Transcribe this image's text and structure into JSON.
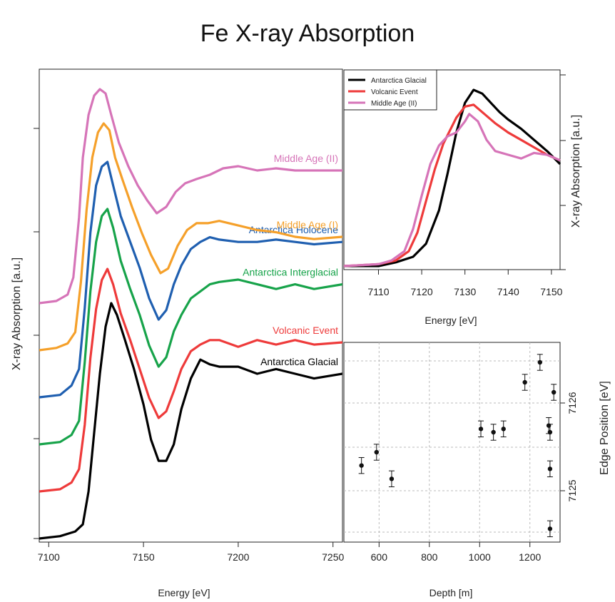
{
  "title": "Fe X-ray Absorption",
  "chart_data": [
    {
      "type": "line",
      "xlabel": "Energy [eV]",
      "ylabel": "X-ray Absorption [a.u.]",
      "xlim": [
        7095,
        7255
      ],
      "ylim": [
        0,
        1
      ],
      "xticks": [
        "7100",
        "7150",
        "7200",
        "7250"
      ],
      "grid": false,
      "legend": "inline labels on right",
      "series": [
        {
          "name": "Antarctica Glacial",
          "color": "#000000",
          "offset": 0.0,
          "scale": 0.55,
          "points": [
            [
              7095,
              0.0
            ],
            [
              7106,
              0.01
            ],
            [
              7114,
              0.03
            ],
            [
              7118,
              0.06
            ],
            [
              7121,
              0.2
            ],
            [
              7124,
              0.45
            ],
            [
              7127,
              0.7
            ],
            [
              7130,
              0.9
            ],
            [
              7133,
              1.0
            ],
            [
              7136,
              0.95
            ],
            [
              7140,
              0.85
            ],
            [
              7145,
              0.72
            ],
            [
              7150,
              0.57
            ],
            [
              7154,
              0.42
            ],
            [
              7158,
              0.33
            ],
            [
              7162,
              0.33
            ],
            [
              7166,
              0.4
            ],
            [
              7170,
              0.55
            ],
            [
              7175,
              0.68
            ],
            [
              7180,
              0.76
            ],
            [
              7185,
              0.74
            ],
            [
              7190,
              0.73
            ],
            [
              7200,
              0.73
            ],
            [
              7210,
              0.7
            ],
            [
              7220,
              0.72
            ],
            [
              7230,
              0.7
            ],
            [
              7240,
              0.68
            ],
            [
              7255,
              0.7
            ]
          ]
        },
        {
          "name": "Volcanic Event",
          "color": "#ee3a3a",
          "offset": 0.11,
          "scale": 0.52,
          "points": [
            [
              7095,
              0.0
            ],
            [
              7106,
              0.01
            ],
            [
              7112,
              0.04
            ],
            [
              7116,
              0.1
            ],
            [
              7119,
              0.3
            ],
            [
              7122,
              0.6
            ],
            [
              7125,
              0.82
            ],
            [
              7128,
              0.95
            ],
            [
              7131,
              1.0
            ],
            [
              7134,
              0.93
            ],
            [
              7138,
              0.8
            ],
            [
              7143,
              0.68
            ],
            [
              7148,
              0.55
            ],
            [
              7153,
              0.42
            ],
            [
              7158,
              0.33
            ],
            [
              7162,
              0.36
            ],
            [
              7166,
              0.45
            ],
            [
              7170,
              0.55
            ],
            [
              7175,
              0.63
            ],
            [
              7180,
              0.66
            ],
            [
              7185,
              0.68
            ],
            [
              7190,
              0.68
            ],
            [
              7200,
              0.65
            ],
            [
              7210,
              0.68
            ],
            [
              7220,
              0.66
            ],
            [
              7230,
              0.68
            ],
            [
              7240,
              0.66
            ],
            [
              7255,
              0.67
            ]
          ]
        },
        {
          "name": "Antarctica Interglacial",
          "color": "#17a34a",
          "offset": 0.22,
          "scale": 0.55,
          "points": [
            [
              7095,
              0.0
            ],
            [
              7106,
              0.01
            ],
            [
              7112,
              0.04
            ],
            [
              7116,
              0.1
            ],
            [
              7119,
              0.35
            ],
            [
              7122,
              0.65
            ],
            [
              7125,
              0.86
            ],
            [
              7128,
              0.97
            ],
            [
              7131,
              1.0
            ],
            [
              7134,
              0.92
            ],
            [
              7138,
              0.78
            ],
            [
              7143,
              0.66
            ],
            [
              7148,
              0.55
            ],
            [
              7153,
              0.42
            ],
            [
              7158,
              0.33
            ],
            [
              7162,
              0.37
            ],
            [
              7166,
              0.48
            ],
            [
              7170,
              0.55
            ],
            [
              7175,
              0.62
            ],
            [
              7180,
              0.65
            ],
            [
              7185,
              0.68
            ],
            [
              7190,
              0.69
            ],
            [
              7200,
              0.7
            ],
            [
              7210,
              0.68
            ],
            [
              7220,
              0.66
            ],
            [
              7230,
              0.68
            ],
            [
              7240,
              0.66
            ],
            [
              7255,
              0.68
            ]
          ]
        },
        {
          "name": "Antarctica Holocene",
          "color": "#1f5fb0",
          "offset": 0.33,
          "scale": 0.55,
          "points": [
            [
              7095,
              0.0
            ],
            [
              7106,
              0.01
            ],
            [
              7112,
              0.05
            ],
            [
              7116,
              0.12
            ],
            [
              7119,
              0.38
            ],
            [
              7122,
              0.7
            ],
            [
              7125,
              0.9
            ],
            [
              7128,
              0.98
            ],
            [
              7131,
              1.0
            ],
            [
              7134,
              0.9
            ],
            [
              7138,
              0.77
            ],
            [
              7143,
              0.66
            ],
            [
              7148,
              0.55
            ],
            [
              7153,
              0.42
            ],
            [
              7158,
              0.33
            ],
            [
              7162,
              0.37
            ],
            [
              7166,
              0.48
            ],
            [
              7170,
              0.56
            ],
            [
              7175,
              0.63
            ],
            [
              7180,
              0.66
            ],
            [
              7185,
              0.68
            ],
            [
              7190,
              0.67
            ],
            [
              7200,
              0.66
            ],
            [
              7210,
              0.66
            ],
            [
              7220,
              0.67
            ],
            [
              7230,
              0.66
            ],
            [
              7240,
              0.65
            ],
            [
              7255,
              0.66
            ]
          ]
        },
        {
          "name": "Middle Age (I)",
          "color": "#f5a02a",
          "offset": 0.44,
          "scale": 0.53,
          "points": [
            [
              7095,
              0.0
            ],
            [
              7104,
              0.01
            ],
            [
              7110,
              0.03
            ],
            [
              7114,
              0.08
            ],
            [
              7117,
              0.3
            ],
            [
              7120,
              0.62
            ],
            [
              7123,
              0.85
            ],
            [
              7126,
              0.96
            ],
            [
              7129,
              1.0
            ],
            [
              7132,
              0.97
            ],
            [
              7135,
              0.85
            ],
            [
              7139,
              0.75
            ],
            [
              7144,
              0.63
            ],
            [
              7149,
              0.52
            ],
            [
              7154,
              0.42
            ],
            [
              7159,
              0.34
            ],
            [
              7163,
              0.36
            ],
            [
              7168,
              0.46
            ],
            [
              7173,
              0.53
            ],
            [
              7178,
              0.56
            ],
            [
              7184,
              0.56
            ],
            [
              7190,
              0.57
            ],
            [
              7200,
              0.55
            ],
            [
              7210,
              0.53
            ],
            [
              7220,
              0.52
            ],
            [
              7230,
              0.5
            ],
            [
              7240,
              0.49
            ],
            [
              7255,
              0.5
            ]
          ]
        },
        {
          "name": "Middle Age (II)",
          "color": "#d674b8",
          "offset": 0.55,
          "scale": 0.5,
          "points": [
            [
              7095,
              0.0
            ],
            [
              7104,
              0.01
            ],
            [
              7110,
              0.04
            ],
            [
              7113,
              0.12
            ],
            [
              7116,
              0.4
            ],
            [
              7118,
              0.68
            ],
            [
              7121,
              0.88
            ],
            [
              7124,
              0.97
            ],
            [
              7127,
              1.0
            ],
            [
              7130,
              0.98
            ],
            [
              7133,
              0.88
            ],
            [
              7137,
              0.75
            ],
            [
              7142,
              0.64
            ],
            [
              7147,
              0.55
            ],
            [
              7152,
              0.48
            ],
            [
              7157,
              0.42
            ],
            [
              7162,
              0.45
            ],
            [
              7167,
              0.52
            ],
            [
              7172,
              0.56
            ],
            [
              7178,
              0.58
            ],
            [
              7185,
              0.6
            ],
            [
              7192,
              0.63
            ],
            [
              7200,
              0.64
            ],
            [
              7210,
              0.62
            ],
            [
              7220,
              0.63
            ],
            [
              7230,
              0.62
            ],
            [
              7240,
              0.62
            ],
            [
              7255,
              0.62
            ]
          ]
        }
      ]
    },
    {
      "type": "line",
      "xlabel": "Energy [eV]",
      "ylabel": "X-ray Absorption [a.u.]",
      "xlim": [
        7102,
        7152
      ],
      "ylim": [
        0,
        1
      ],
      "xticks": [
        "7110",
        "7120",
        "7130",
        "7140",
        "7150"
      ],
      "grid": false,
      "legend": "top-left",
      "series": [
        {
          "name": "Antarctica Glacial",
          "color": "#000000",
          "points": [
            [
              7102,
              0.0
            ],
            [
              7110,
              0.0
            ],
            [
              7114,
              0.02
            ],
            [
              7118,
              0.05
            ],
            [
              7121,
              0.12
            ],
            [
              7124,
              0.3
            ],
            [
              7126,
              0.5
            ],
            [
              7128,
              0.72
            ],
            [
              7130,
              0.88
            ],
            [
              7132,
              0.95
            ],
            [
              7134,
              0.93
            ],
            [
              7136,
              0.88
            ],
            [
              7138,
              0.83
            ],
            [
              7140,
              0.79
            ],
            [
              7143,
              0.74
            ],
            [
              7146,
              0.68
            ],
            [
              7149,
              0.62
            ],
            [
              7152,
              0.55
            ]
          ]
        },
        {
          "name": "Volcanic Event",
          "color": "#ee3a3a",
          "points": [
            [
              7102,
              0.0
            ],
            [
              7110,
              0.01
            ],
            [
              7114,
              0.03
            ],
            [
              7117,
              0.08
            ],
            [
              7119,
              0.18
            ],
            [
              7121,
              0.35
            ],
            [
              7123,
              0.52
            ],
            [
              7125,
              0.66
            ],
            [
              7128,
              0.8
            ],
            [
              7130,
              0.86
            ],
            [
              7132,
              0.87
            ],
            [
              7134,
              0.83
            ],
            [
              7137,
              0.77
            ],
            [
              7140,
              0.72
            ],
            [
              7143,
              0.68
            ],
            [
              7146,
              0.64
            ],
            [
              7149,
              0.6
            ],
            [
              7152,
              0.57
            ]
          ]
        },
        {
          "name": "Middle Age (II)",
          "color": "#d674b8",
          "points": [
            [
              7102,
              0.0
            ],
            [
              7110,
              0.01
            ],
            [
              7113,
              0.03
            ],
            [
              7116,
              0.08
            ],
            [
              7118,
              0.2
            ],
            [
              7120,
              0.38
            ],
            [
              7122,
              0.55
            ],
            [
              7124,
              0.65
            ],
            [
              7126,
              0.7
            ],
            [
              7128,
              0.72
            ],
            [
              7130,
              0.78
            ],
            [
              7131,
              0.82
            ],
            [
              7133,
              0.78
            ],
            [
              7135,
              0.68
            ],
            [
              7137,
              0.62
            ],
            [
              7140,
              0.6
            ],
            [
              7143,
              0.58
            ],
            [
              7146,
              0.61
            ],
            [
              7149,
              0.6
            ],
            [
              7152,
              0.57
            ]
          ]
        }
      ]
    },
    {
      "type": "scatter",
      "xlabel": "Depth [m]",
      "ylabel": "Edge Position [eV]",
      "xlim": [
        460,
        1320
      ],
      "ylim": [
        124.3,
        127.3
      ],
      "xticks": [
        "600",
        "800",
        "1000",
        "1200"
      ],
      "yticks": [
        "7125",
        "7126"
      ],
      "grid": true,
      "points": [
        {
          "x": 530,
          "y": 125.45,
          "err": 0.12
        },
        {
          "x": 590,
          "y": 125.65,
          "err": 0.12
        },
        {
          "x": 650,
          "y": 125.25,
          "err": 0.12
        },
        {
          "x": 1005,
          "y": 126.0,
          "err": 0.12
        },
        {
          "x": 1055,
          "y": 125.95,
          "err": 0.12
        },
        {
          "x": 1095,
          "y": 126.0,
          "err": 0.12
        },
        {
          "x": 1180,
          "y": 126.7,
          "err": 0.12
        },
        {
          "x": 1240,
          "y": 127.0,
          "err": 0.12
        },
        {
          "x": 1275,
          "y": 126.05,
          "err": 0.12
        },
        {
          "x": 1280,
          "y": 125.95,
          "err": 0.12
        },
        {
          "x": 1295,
          "y": 126.55,
          "err": 0.12
        },
        {
          "x": 1280,
          "y": 125.4,
          "err": 0.12
        },
        {
          "x": 1280,
          "y": 124.5,
          "err": 0.12
        }
      ]
    }
  ]
}
